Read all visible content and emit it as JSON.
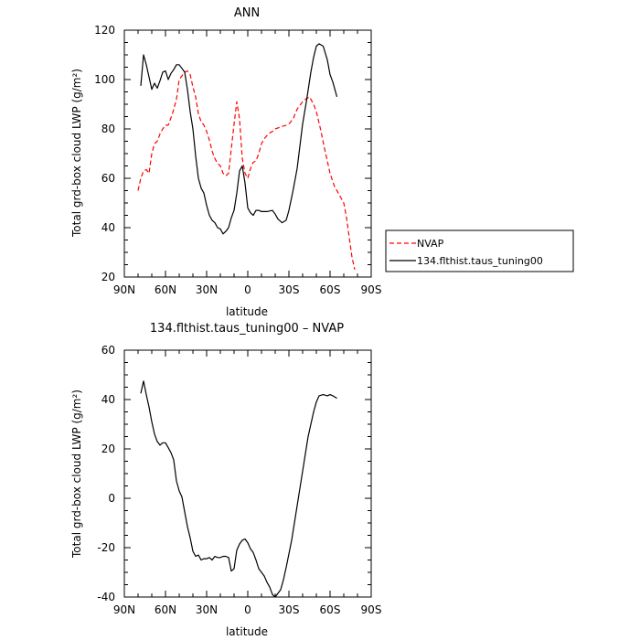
{
  "chart_data": [
    {
      "type": "line",
      "title": "ANN",
      "xlabel": "latitude",
      "ylabel": "Total grd-box cloud LWP (g/m²)",
      "xticks": [
        "90N",
        "60N",
        "30N",
        "0",
        "30S",
        "60S",
        "90S"
      ],
      "xlim": [
        90,
        -90
      ],
      "ylim": [
        20,
        120
      ],
      "yticks": [
        20,
        40,
        60,
        80,
        100,
        120
      ],
      "legend": "right",
      "series": [
        {
          "name": "NVAP",
          "color": "#ff0000",
          "dashed": true,
          "x": [
            80,
            78,
            76,
            74,
            72,
            70,
            68,
            66,
            64,
            62,
            60,
            58,
            55,
            52,
            50,
            48,
            46,
            44,
            42,
            40,
            38,
            36,
            34,
            32,
            30,
            28,
            26,
            24,
            22,
            20,
            18,
            16,
            14,
            12,
            10,
            8,
            6,
            4,
            2,
            0,
            -2,
            -4,
            -6,
            -8,
            -10,
            -12,
            -15,
            -18,
            -20,
            -25,
            -28,
            -30,
            -33,
            -36,
            -40,
            -42,
            -45,
            -48,
            -50,
            -53,
            -56,
            -60,
            -63,
            -66,
            -70,
            -72,
            -74,
            -76,
            -78
          ],
          "y": [
            55,
            60,
            63,
            63.5,
            62,
            70,
            74,
            75,
            78,
            80,
            81.5,
            81.5,
            86,
            92,
            100,
            101.5,
            103,
            103.5,
            102,
            97,
            93,
            86,
            83,
            81.5,
            79,
            75.5,
            71,
            68,
            66,
            65,
            62,
            61,
            62,
            72,
            82,
            91,
            84,
            68,
            62,
            60,
            64,
            66.5,
            67,
            70,
            74,
            76,
            78,
            79,
            80,
            81,
            81.5,
            82,
            84,
            88,
            91,
            92,
            93,
            90,
            87,
            80,
            72,
            62,
            57,
            54,
            50,
            44,
            36,
            28,
            23
          ]
        },
        {
          "name": "134.flthist.taus_tuning00",
          "color": "#000000",
          "dashed": false,
          "x": [
            78,
            76,
            74,
            72,
            70,
            68,
            66,
            64,
            62,
            60,
            58,
            56,
            54,
            52,
            50,
            48,
            46,
            44,
            42,
            40,
            38,
            36,
            34,
            32,
            30,
            28,
            26,
            24,
            22,
            20,
            18,
            16,
            14,
            12,
            10,
            8,
            6,
            4,
            2,
            0,
            -2,
            -4,
            -6,
            -8,
            -10,
            -14,
            -18,
            -20,
            -22,
            -25,
            -28,
            -30,
            -33,
            -36,
            -40,
            -43,
            -46,
            -48,
            -50,
            -52,
            -55,
            -58,
            -60,
            -62,
            -65
          ],
          "y": [
            97.5,
            110,
            106,
            101,
            96,
            98.5,
            96.5,
            99.5,
            103,
            103.5,
            100,
            102.5,
            104,
            106,
            106,
            104.5,
            103,
            96,
            87,
            80,
            69,
            60,
            56,
            54,
            49,
            45,
            43,
            42,
            40,
            39.5,
            37.5,
            38.5,
            40,
            44,
            47,
            54,
            63,
            65,
            58,
            48,
            46,
            45,
            47,
            47,
            46.5,
            46.5,
            47,
            45.5,
            43.5,
            42,
            43,
            47,
            55,
            64,
            82,
            92,
            103,
            109,
            113.5,
            114.5,
            113.5,
            108,
            102,
            99,
            93
          ]
        }
      ]
    },
    {
      "type": "line",
      "title": "134.flthist.taus_tuning00 – NVAP",
      "xlabel": "latitude",
      "ylabel": "Total grd-box cloud LWP (g/m²)",
      "xticks": [
        "90N",
        "60N",
        "30N",
        "0",
        "30S",
        "60S",
        "90S"
      ],
      "xlim": [
        90,
        -90
      ],
      "ylim": [
        -40,
        60
      ],
      "yticks": [
        -40,
        -20,
        0,
        20,
        40,
        60
      ],
      "series": [
        {
          "color": "#000000",
          "dashed": false,
          "x": [
            78,
            76,
            74,
            72,
            70,
            68,
            66,
            64,
            62,
            60,
            58,
            56,
            54,
            52,
            50,
            48,
            46,
            44,
            42,
            40,
            38,
            36,
            34,
            32,
            30,
            28,
            26,
            24,
            22,
            20,
            18,
            16,
            14,
            12,
            10,
            8,
            6,
            4,
            2,
            0,
            -2,
            -4,
            -6,
            -8,
            -10,
            -12,
            -14,
            -16,
            -18,
            -20,
            -22,
            -24,
            -26,
            -28,
            -30,
            -32,
            -34,
            -36,
            -38,
            -40,
            -42,
            -44,
            -46,
            -48,
            -50,
            -52,
            -55,
            -58,
            -60,
            -62,
            -65
          ],
          "y": [
            42.5,
            47.5,
            42,
            37,
            31,
            26,
            23,
            21.5,
            22.5,
            22.5,
            20.5,
            18.5,
            15.5,
            7,
            3,
            0.5,
            -5.5,
            -11.5,
            -16,
            -21.5,
            -23.5,
            -23,
            -25,
            -24.5,
            -24.5,
            -24,
            -25,
            -23.5,
            -24,
            -24,
            -23.5,
            -23.5,
            -24,
            -29.5,
            -28.5,
            -21,
            -18.5,
            -17,
            -16.5,
            -18,
            -20.5,
            -22,
            -25,
            -28.5,
            -30,
            -31.5,
            -34,
            -36,
            -39,
            -40,
            -38.5,
            -37,
            -33,
            -28,
            -22.5,
            -17,
            -10,
            -3,
            4,
            11,
            18,
            25,
            30,
            35,
            39,
            41.5,
            42,
            41.5,
            42,
            41.5,
            40.5
          ]
        }
      ]
    }
  ]
}
